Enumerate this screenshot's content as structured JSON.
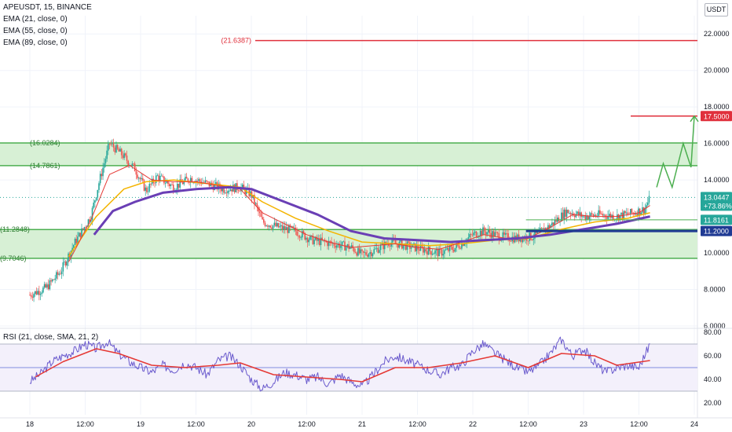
{
  "header": {
    "symbol": "APEUSDT, 15, BINANCE",
    "indicators": [
      "EMA (21, close, 0)",
      "EMA (55, close, 0)",
      "EMA (89, close, 0)"
    ],
    "currency": "USDT"
  },
  "rsi_panel": {
    "label": "RSI (21, close, SMA, 21, 2)"
  },
  "colors": {
    "zone_fill": "#d7f0d5",
    "zone_line": "#4caf50",
    "target_red": "#e0303c",
    "ema21": "#e53935",
    "ema55": "#f4b400",
    "ema89": "#6a3fb5",
    "rsi_line": "#6a5acd",
    "rsi_ma": "#e53935",
    "up_candle": "#26a69a",
    "down_candle": "#ef5350",
    "price_tag": "#26a69a",
    "support_blue": "#1f3a93",
    "arrow_green": "#4caf50"
  },
  "chart_data": {
    "type": "candlestick",
    "ylim": [
      6.0,
      23.0
    ],
    "y_ticks": [
      "22.0000",
      "20.0000",
      "18.0000",
      "16.0000",
      "14.0000",
      "10.0000",
      "8.0000",
      "6.0000"
    ],
    "x_ticks": [
      "18",
      "12:00",
      "19",
      "12:00",
      "20",
      "12:00",
      "21",
      "12:00",
      "22",
      "12:00",
      "23",
      "12:00",
      "24"
    ],
    "levels": [
      {
        "label": "(21.6387)",
        "value": 21.6387
      },
      {
        "label": "(16.0284)",
        "value": 16.0284
      },
      {
        "label": "(14.7861)",
        "value": 14.7861
      },
      {
        "label": "(11.2848)",
        "value": 11.2848
      },
      {
        "label": "(9.7046)",
        "value": 9.7046
      }
    ],
    "zones": [
      {
        "top": 16.0284,
        "bottom": 14.7861
      },
      {
        "top": 11.2848,
        "bottom": 9.7046
      }
    ],
    "price_tags": [
      {
        "label": "17.5000",
        "value": 17.5
      },
      {
        "label": "13.0447",
        "sub": "+73.86%",
        "value": 13.0447
      },
      {
        "label": "11.8161",
        "value": 11.8161
      },
      {
        "label": "11.2000",
        "value": 11.2
      }
    ],
    "last_price": 13.0447,
    "target": 17.5,
    "support": 11.2,
    "support_short": 11.8161,
    "projection": [
      {
        "day": 5.66,
        "price": 13.6
      },
      {
        "day": 5.72,
        "price": 14.9
      },
      {
        "day": 5.8,
        "price": 13.6
      },
      {
        "day": 5.9,
        "price": 16.0
      },
      {
        "day": 5.97,
        "price": 14.7
      },
      {
        "day": 6.0,
        "price": 17.5
      }
    ],
    "price_path": [
      [
        0.0,
        7.7
      ],
      [
        0.15,
        8.1
      ],
      [
        0.28,
        9.0
      ],
      [
        0.4,
        10.5
      ],
      [
        0.55,
        12.0
      ],
      [
        0.63,
        14.0
      ],
      [
        0.72,
        16.0
      ],
      [
        0.83,
        15.4
      ],
      [
        0.95,
        14.6
      ],
      [
        1.05,
        13.4
      ],
      [
        1.15,
        14.2
      ],
      [
        1.3,
        13.6
      ],
      [
        1.45,
        14.1
      ],
      [
        1.6,
        13.8
      ],
      [
        1.75,
        13.5
      ],
      [
        1.9,
        13.6
      ],
      [
        2.0,
        13.2
      ],
      [
        2.1,
        11.7
      ],
      [
        2.25,
        11.4
      ],
      [
        2.4,
        11.2
      ],
      [
        2.55,
        10.7
      ],
      [
        2.75,
        10.5
      ],
      [
        2.9,
        10.3
      ],
      [
        3.0,
        9.9
      ],
      [
        3.1,
        10.1
      ],
      [
        3.25,
        10.6
      ],
      [
        3.4,
        10.4
      ],
      [
        3.55,
        10.2
      ],
      [
        3.7,
        10.0
      ],
      [
        3.85,
        10.3
      ],
      [
        4.0,
        11.0
      ],
      [
        4.1,
        11.2
      ],
      [
        4.25,
        10.9
      ],
      [
        4.4,
        10.8
      ],
      [
        4.55,
        10.9
      ],
      [
        4.7,
        11.5
      ],
      [
        4.85,
        12.3
      ],
      [
        5.0,
        12.0
      ],
      [
        5.15,
        12.1
      ],
      [
        5.3,
        12.0
      ],
      [
        5.45,
        12.2
      ],
      [
        5.55,
        12.4
      ],
      [
        5.6,
        13.0
      ]
    ],
    "ema21": [
      [
        0.35,
        9.5
      ],
      [
        0.55,
        11.8
      ],
      [
        0.72,
        14.3
      ],
      [
        0.9,
        14.8
      ],
      [
        1.1,
        14.0
      ],
      [
        1.3,
        13.9
      ],
      [
        1.5,
        13.9
      ],
      [
        1.7,
        13.7
      ],
      [
        1.9,
        13.5
      ],
      [
        2.1,
        12.2
      ],
      [
        2.3,
        11.6
      ],
      [
        2.5,
        11.0
      ],
      [
        2.7,
        10.6
      ],
      [
        2.9,
        10.3
      ],
      [
        3.1,
        10.4
      ],
      [
        3.3,
        10.5
      ],
      [
        3.5,
        10.3
      ],
      [
        3.7,
        10.2
      ],
      [
        3.9,
        10.6
      ],
      [
        4.1,
        11.0
      ],
      [
        4.3,
        10.8
      ],
      [
        4.5,
        10.8
      ],
      [
        4.7,
        11.4
      ],
      [
        4.9,
        12.1
      ],
      [
        5.1,
        12.0
      ],
      [
        5.3,
        12.0
      ],
      [
        5.5,
        12.2
      ],
      [
        5.6,
        12.6
      ]
    ],
    "ema55": [
      [
        0.35,
        9.8
      ],
      [
        0.6,
        12.0
      ],
      [
        0.85,
        13.5
      ],
      [
        1.05,
        13.9
      ],
      [
        1.3,
        14.0
      ],
      [
        1.6,
        13.8
      ],
      [
        1.9,
        13.6
      ],
      [
        2.1,
        12.8
      ],
      [
        2.4,
        11.9
      ],
      [
        2.7,
        11.2
      ],
      [
        3.0,
        10.6
      ],
      [
        3.3,
        10.5
      ],
      [
        3.6,
        10.4
      ],
      [
        3.9,
        10.5
      ],
      [
        4.2,
        10.7
      ],
      [
        4.5,
        10.8
      ],
      [
        4.8,
        11.3
      ],
      [
        5.1,
        11.7
      ],
      [
        5.4,
        11.9
      ],
      [
        5.6,
        12.2
      ]
    ],
    "ema89": [
      [
        0.58,
        11.0
      ],
      [
        0.75,
        12.3
      ],
      [
        0.95,
        12.8
      ],
      [
        1.2,
        13.3
      ],
      [
        1.5,
        13.5
      ],
      [
        1.8,
        13.6
      ],
      [
        2.0,
        13.5
      ],
      [
        2.3,
        12.8
      ],
      [
        2.6,
        12.1
      ],
      [
        2.9,
        11.2
      ],
      [
        3.2,
        10.8
      ],
      [
        3.5,
        10.7
      ],
      [
        3.8,
        10.6
      ],
      [
        4.1,
        10.7
      ],
      [
        4.4,
        10.8
      ],
      [
        4.7,
        11.0
      ],
      [
        5.0,
        11.3
      ],
      [
        5.3,
        11.6
      ],
      [
        5.6,
        12.0
      ]
    ],
    "rsi": {
      "ticks": [
        "80.00",
        "60.00",
        "40.00",
        "20.00"
      ],
      "ylim": [
        10,
        82
      ],
      "band_top": 70,
      "mid": 50,
      "band_bottom": 30,
      "rsi_path": [
        [
          0.0,
          38
        ],
        [
          0.1,
          45
        ],
        [
          0.2,
          55
        ],
        [
          0.3,
          60
        ],
        [
          0.4,
          64
        ],
        [
          0.5,
          70
        ],
        [
          0.6,
          66
        ],
        [
          0.7,
          72
        ],
        [
          0.8,
          62
        ],
        [
          0.9,
          55
        ],
        [
          1.0,
          50
        ],
        [
          1.1,
          46
        ],
        [
          1.2,
          52
        ],
        [
          1.3,
          48
        ],
        [
          1.4,
          54
        ],
        [
          1.5,
          50
        ],
        [
          1.6,
          44
        ],
        [
          1.7,
          56
        ],
        [
          1.8,
          60
        ],
        [
          1.9,
          52
        ],
        [
          2.0,
          40
        ],
        [
          2.1,
          32
        ],
        [
          2.2,
          38
        ],
        [
          2.3,
          46
        ],
        [
          2.4,
          44
        ],
        [
          2.5,
          40
        ],
        [
          2.6,
          42
        ],
        [
          2.7,
          36
        ],
        [
          2.8,
          44
        ],
        [
          2.9,
          38
        ],
        [
          3.0,
          34
        ],
        [
          3.1,
          44
        ],
        [
          3.2,
          55
        ],
        [
          3.3,
          60
        ],
        [
          3.4,
          56
        ],
        [
          3.5,
          52
        ],
        [
          3.6,
          48
        ],
        [
          3.7,
          44
        ],
        [
          3.8,
          50
        ],
        [
          3.9,
          52
        ],
        [
          4.0,
          64
        ],
        [
          4.1,
          70
        ],
        [
          4.2,
          62
        ],
        [
          4.3,
          56
        ],
        [
          4.4,
          50
        ],
        [
          4.5,
          46
        ],
        [
          4.6,
          52
        ],
        [
          4.7,
          62
        ],
        [
          4.8,
          74
        ],
        [
          4.9,
          60
        ],
        [
          5.0,
          66
        ],
        [
          5.1,
          54
        ],
        [
          5.2,
          46
        ],
        [
          5.3,
          50
        ],
        [
          5.4,
          52
        ],
        [
          5.5,
          50
        ],
        [
          5.6,
          70
        ]
      ],
      "ma_path": [
        [
          0.05,
          42
        ],
        [
          0.3,
          55
        ],
        [
          0.6,
          66
        ],
        [
          0.8,
          62
        ],
        [
          1.1,
          52
        ],
        [
          1.4,
          50
        ],
        [
          1.7,
          52
        ],
        [
          1.9,
          54
        ],
        [
          2.2,
          44
        ],
        [
          2.5,
          42
        ],
        [
          2.8,
          40
        ],
        [
          3.0,
          38
        ],
        [
          3.3,
          50
        ],
        [
          3.6,
          50
        ],
        [
          3.9,
          54
        ],
        [
          4.2,
          60
        ],
        [
          4.5,
          50
        ],
        [
          4.8,
          62
        ],
        [
          5.1,
          60
        ],
        [
          5.3,
          52
        ],
        [
          5.6,
          56
        ]
      ]
    }
  }
}
